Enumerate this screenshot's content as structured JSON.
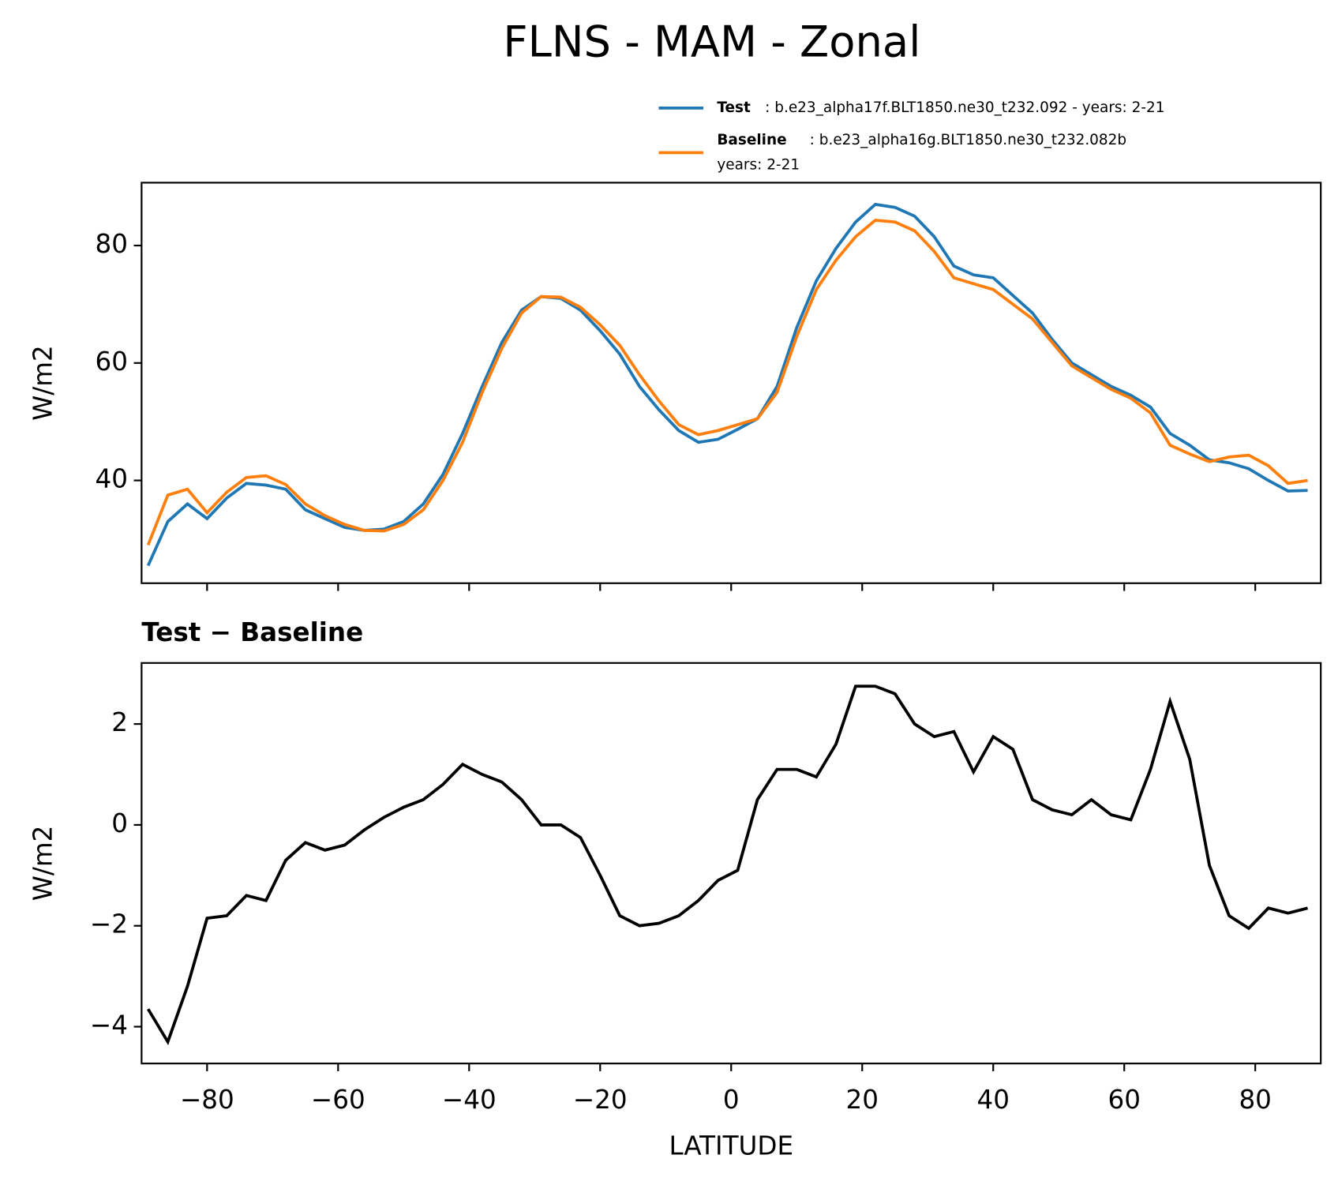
{
  "title": "FLNS - MAM - Zonal",
  "chart_data": [
    {
      "type": "line",
      "x": [
        -89,
        -86,
        -83,
        -80,
        -77,
        -74,
        -71,
        -68,
        -65,
        -62,
        -59,
        -56,
        -53,
        -50,
        -47,
        -44,
        -41,
        -38,
        -35,
        -32,
        -29,
        -26,
        -23,
        -20,
        -17,
        -14,
        -11,
        -8,
        -5,
        -2,
        1,
        4,
        7,
        10,
        13,
        16,
        19,
        22,
        25,
        28,
        31,
        34,
        37,
        40,
        43,
        46,
        49,
        52,
        55,
        58,
        61,
        64,
        67,
        70,
        73,
        76,
        79,
        82,
        85,
        88
      ],
      "series": [
        {
          "name": "Test",
          "legend_text": [
            ": b.e23_alpha17f.BLT1850.ne30_t232.092 - years: 2-21"
          ],
          "color": "#1f77b4",
          "values": [
            25.5,
            33,
            36,
            33.5,
            37,
            39.5,
            39.2,
            38.5,
            35,
            33.5,
            32,
            31.5,
            31.7,
            33,
            36,
            41,
            48,
            56,
            63.5,
            69,
            71.3,
            71,
            69,
            65.5,
            61.5,
            56,
            52,
            48.5,
            46.5,
            47,
            48.7,
            50.5,
            56,
            66,
            74,
            79.5,
            84,
            87,
            86.5,
            85,
            81.5,
            76.5,
            75,
            74.5,
            71.5,
            68.5,
            64,
            60,
            58,
            56,
            54.5,
            52.5,
            48,
            46,
            43.5,
            43,
            42,
            40,
            38.2,
            38.3
          ]
        },
        {
          "name": "Baseline",
          "legend_text": [
            ": b.e23_alpha16g.BLT1850.ne30_t232.082b",
            "years: 2-21"
          ],
          "color": "#ff7f0e",
          "values": [
            29,
            37.5,
            38.5,
            34.5,
            38,
            40.5,
            40.8,
            39.3,
            36,
            34,
            32.5,
            31.5,
            31.4,
            32.5,
            35,
            40,
            46.5,
            55,
            62.5,
            68.5,
            71.3,
            71.2,
            69.5,
            66.5,
            63,
            58,
            53.5,
            49.5,
            47.8,
            48.5,
            49.5,
            50.5,
            55,
            64.5,
            72.5,
            77.5,
            81.5,
            84.3,
            84,
            82.5,
            79,
            74.5,
            73.5,
            72.5,
            70,
            67.5,
            63.5,
            59.5,
            57.5,
            55.5,
            54,
            51.5,
            46,
            44.5,
            43.2,
            44,
            44.3,
            42.5,
            39.5,
            40
          ]
        }
      ],
      "ylabel": "W/m2",
      "xlim": [
        -90,
        90
      ],
      "xticks": [
        -80,
        -60,
        -40,
        -20,
        0,
        20,
        40,
        60,
        80
      ],
      "ylim": [
        22.5,
        90.7
      ],
      "yticks": [
        40,
        60,
        80
      ]
    },
    {
      "type": "line",
      "title": "Test − Baseline",
      "x": [
        -89,
        -86,
        -83,
        -80,
        -77,
        -74,
        -71,
        -68,
        -65,
        -62,
        -59,
        -56,
        -53,
        -50,
        -47,
        -44,
        -41,
        -38,
        -35,
        -32,
        -29,
        -26,
        -23,
        -20,
        -17,
        -14,
        -11,
        -8,
        -5,
        -2,
        1,
        4,
        7,
        10,
        13,
        16,
        19,
        22,
        25,
        28,
        31,
        34,
        37,
        40,
        43,
        46,
        49,
        52,
        55,
        58,
        61,
        64,
        67,
        70,
        73,
        76,
        79,
        82,
        85,
        88
      ],
      "series": [
        {
          "color": "#000000",
          "values": [
            -3.65,
            -4.3,
            -3.2,
            -1.85,
            -1.8,
            -1.4,
            -1.5,
            -0.7,
            -0.35,
            -0.5,
            -0.4,
            -0.1,
            0.15,
            0.35,
            0.5,
            0.8,
            1.2,
            1.0,
            0.85,
            0.5,
            0.0,
            0.0,
            -0.25,
            -1.0,
            -1.8,
            -2.0,
            -1.95,
            -1.8,
            -1.5,
            -1.1,
            -0.9,
            0.5,
            1.1,
            1.1,
            0.95,
            1.6,
            2.75,
            2.75,
            2.6,
            2.0,
            1.75,
            1.85,
            1.05,
            1.75,
            1.5,
            0.5,
            0.3,
            0.2,
            0.5,
            0.2,
            0.1,
            1.1,
            2.45,
            1.3,
            -0.8,
            -1.8,
            -2.05,
            -1.65,
            -1.75,
            -1.65
          ]
        }
      ],
      "ylabel": "W/m2",
      "xlabel": "LATITUDE",
      "xlim": [
        -90,
        90
      ],
      "xticks": [
        {
          "value": -80,
          "label": "−80"
        },
        {
          "value": -60,
          "label": "−60"
        },
        {
          "value": -40,
          "label": "−40"
        },
        {
          "value": -20,
          "label": "−20"
        },
        0,
        20,
        40,
        60,
        80
      ],
      "ylim": [
        -4.73,
        3.21
      ],
      "yticks": [
        {
          "value": -4,
          "label": "−4"
        },
        {
          "value": -2,
          "label": "−2"
        },
        0,
        2
      ]
    }
  ]
}
